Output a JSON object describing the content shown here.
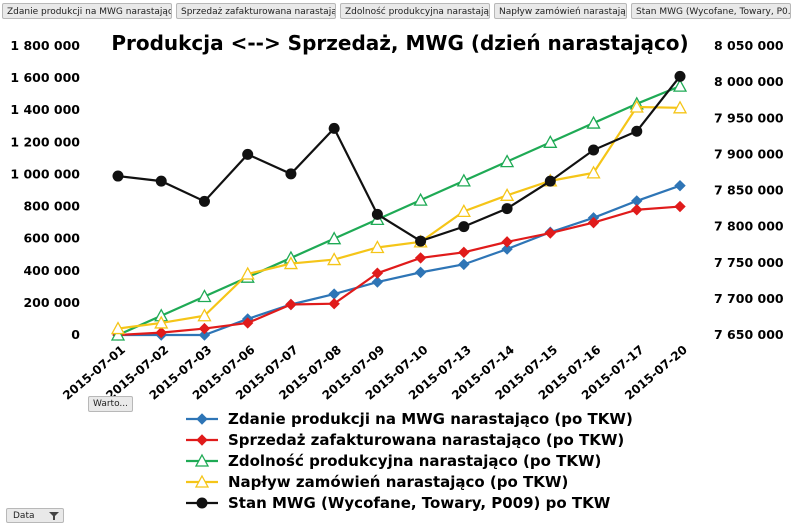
{
  "tabs": [
    "Zdanie produkcji na MWG narastając...",
    "Sprzedaż zafakturowana narastając...",
    "Zdolność produkcyjna narastając...",
    "Napływ zamówień narastając...",
    "Stan MWG (Wycofane, Towary, P0..."
  ],
  "filter_button": "Warto...",
  "data_button": "Data",
  "chart_data": {
    "type": "line",
    "title": "Produkcja <--> Sprzedaż, MWG (dzień narastająco)",
    "categories": [
      "2015-07-01",
      "2015-07-02",
      "2015-07-03",
      "2015-07-06",
      "2015-07-07",
      "2015-07-08",
      "2015-07-09",
      "2015-07-10",
      "2015-07-13",
      "2015-07-14",
      "2015-07-15",
      "2015-07-16",
      "2015-07-17",
      "2015-07-20"
    ],
    "y_left": {
      "min": 0,
      "max": 1800000,
      "step": 200000,
      "ticks": [
        "0",
        "200 000",
        "400 000",
        "600 000",
        "800 000",
        "1 000 000",
        "1 200 000",
        "1 400 000",
        "1 600 000",
        "1 800 000"
      ]
    },
    "y_right": {
      "min": 7650000,
      "max": 8050000,
      "step": 50000,
      "ticks": [
        "7 650 000",
        "7 700 000",
        "7 750 000",
        "7 800 000",
        "7 850 000",
        "7 900 000",
        "7 950 000",
        "8 000 000",
        "8 050 000"
      ]
    },
    "grid": false,
    "legend_position": "bottom",
    "series": [
      {
        "name": "Zdanie produkcji na MWG narastająco (po TKW)",
        "axis": "left",
        "color": "#2e75b6",
        "marker": "diamond",
        "values": [
          0,
          0,
          0,
          100000,
          190000,
          255000,
          330000,
          390000,
          440000,
          535000,
          640000,
          730000,
          835000,
          930000
        ]
      },
      {
        "name": "Sprzedaż zafakturowana narastająco (po TKW)",
        "axis": "left",
        "color": "#e01b1b",
        "marker": "diamond",
        "values": [
          0,
          15000,
          40000,
          75000,
          190000,
          195000,
          385000,
          480000,
          515000,
          580000,
          635000,
          700000,
          780000,
          800000
        ]
      },
      {
        "name": "Zdolność produkcyjna narastająco (po TKW)",
        "axis": "left",
        "color": "#1faa55",
        "marker": "triangle",
        "values": [
          0,
          120000,
          240000,
          360000,
          480000,
          600000,
          720000,
          840000,
          960000,
          1080000,
          1200000,
          1320000,
          1440000,
          1550000
        ]
      },
      {
        "name": "Napływ zamówień narastająco (po TKW)",
        "axis": "left",
        "color": "#f5c518",
        "marker": "triangle",
        "values": [
          40000,
          75000,
          120000,
          380000,
          445000,
          470000,
          545000,
          580000,
          770000,
          870000,
          960000,
          1010000,
          1420000,
          1415000
        ]
      },
      {
        "name": "Stan MWG (Wycofane, Towary, P009) po TKW",
        "axis": "right",
        "color": "#111111",
        "marker": "circle",
        "values": [
          7870000,
          7863000,
          7835000,
          7900000,
          7873000,
          7936000,
          7817000,
          7780000,
          7800000,
          7825000,
          7863000,
          7906000,
          7932000,
          8008000
        ]
      }
    ]
  }
}
